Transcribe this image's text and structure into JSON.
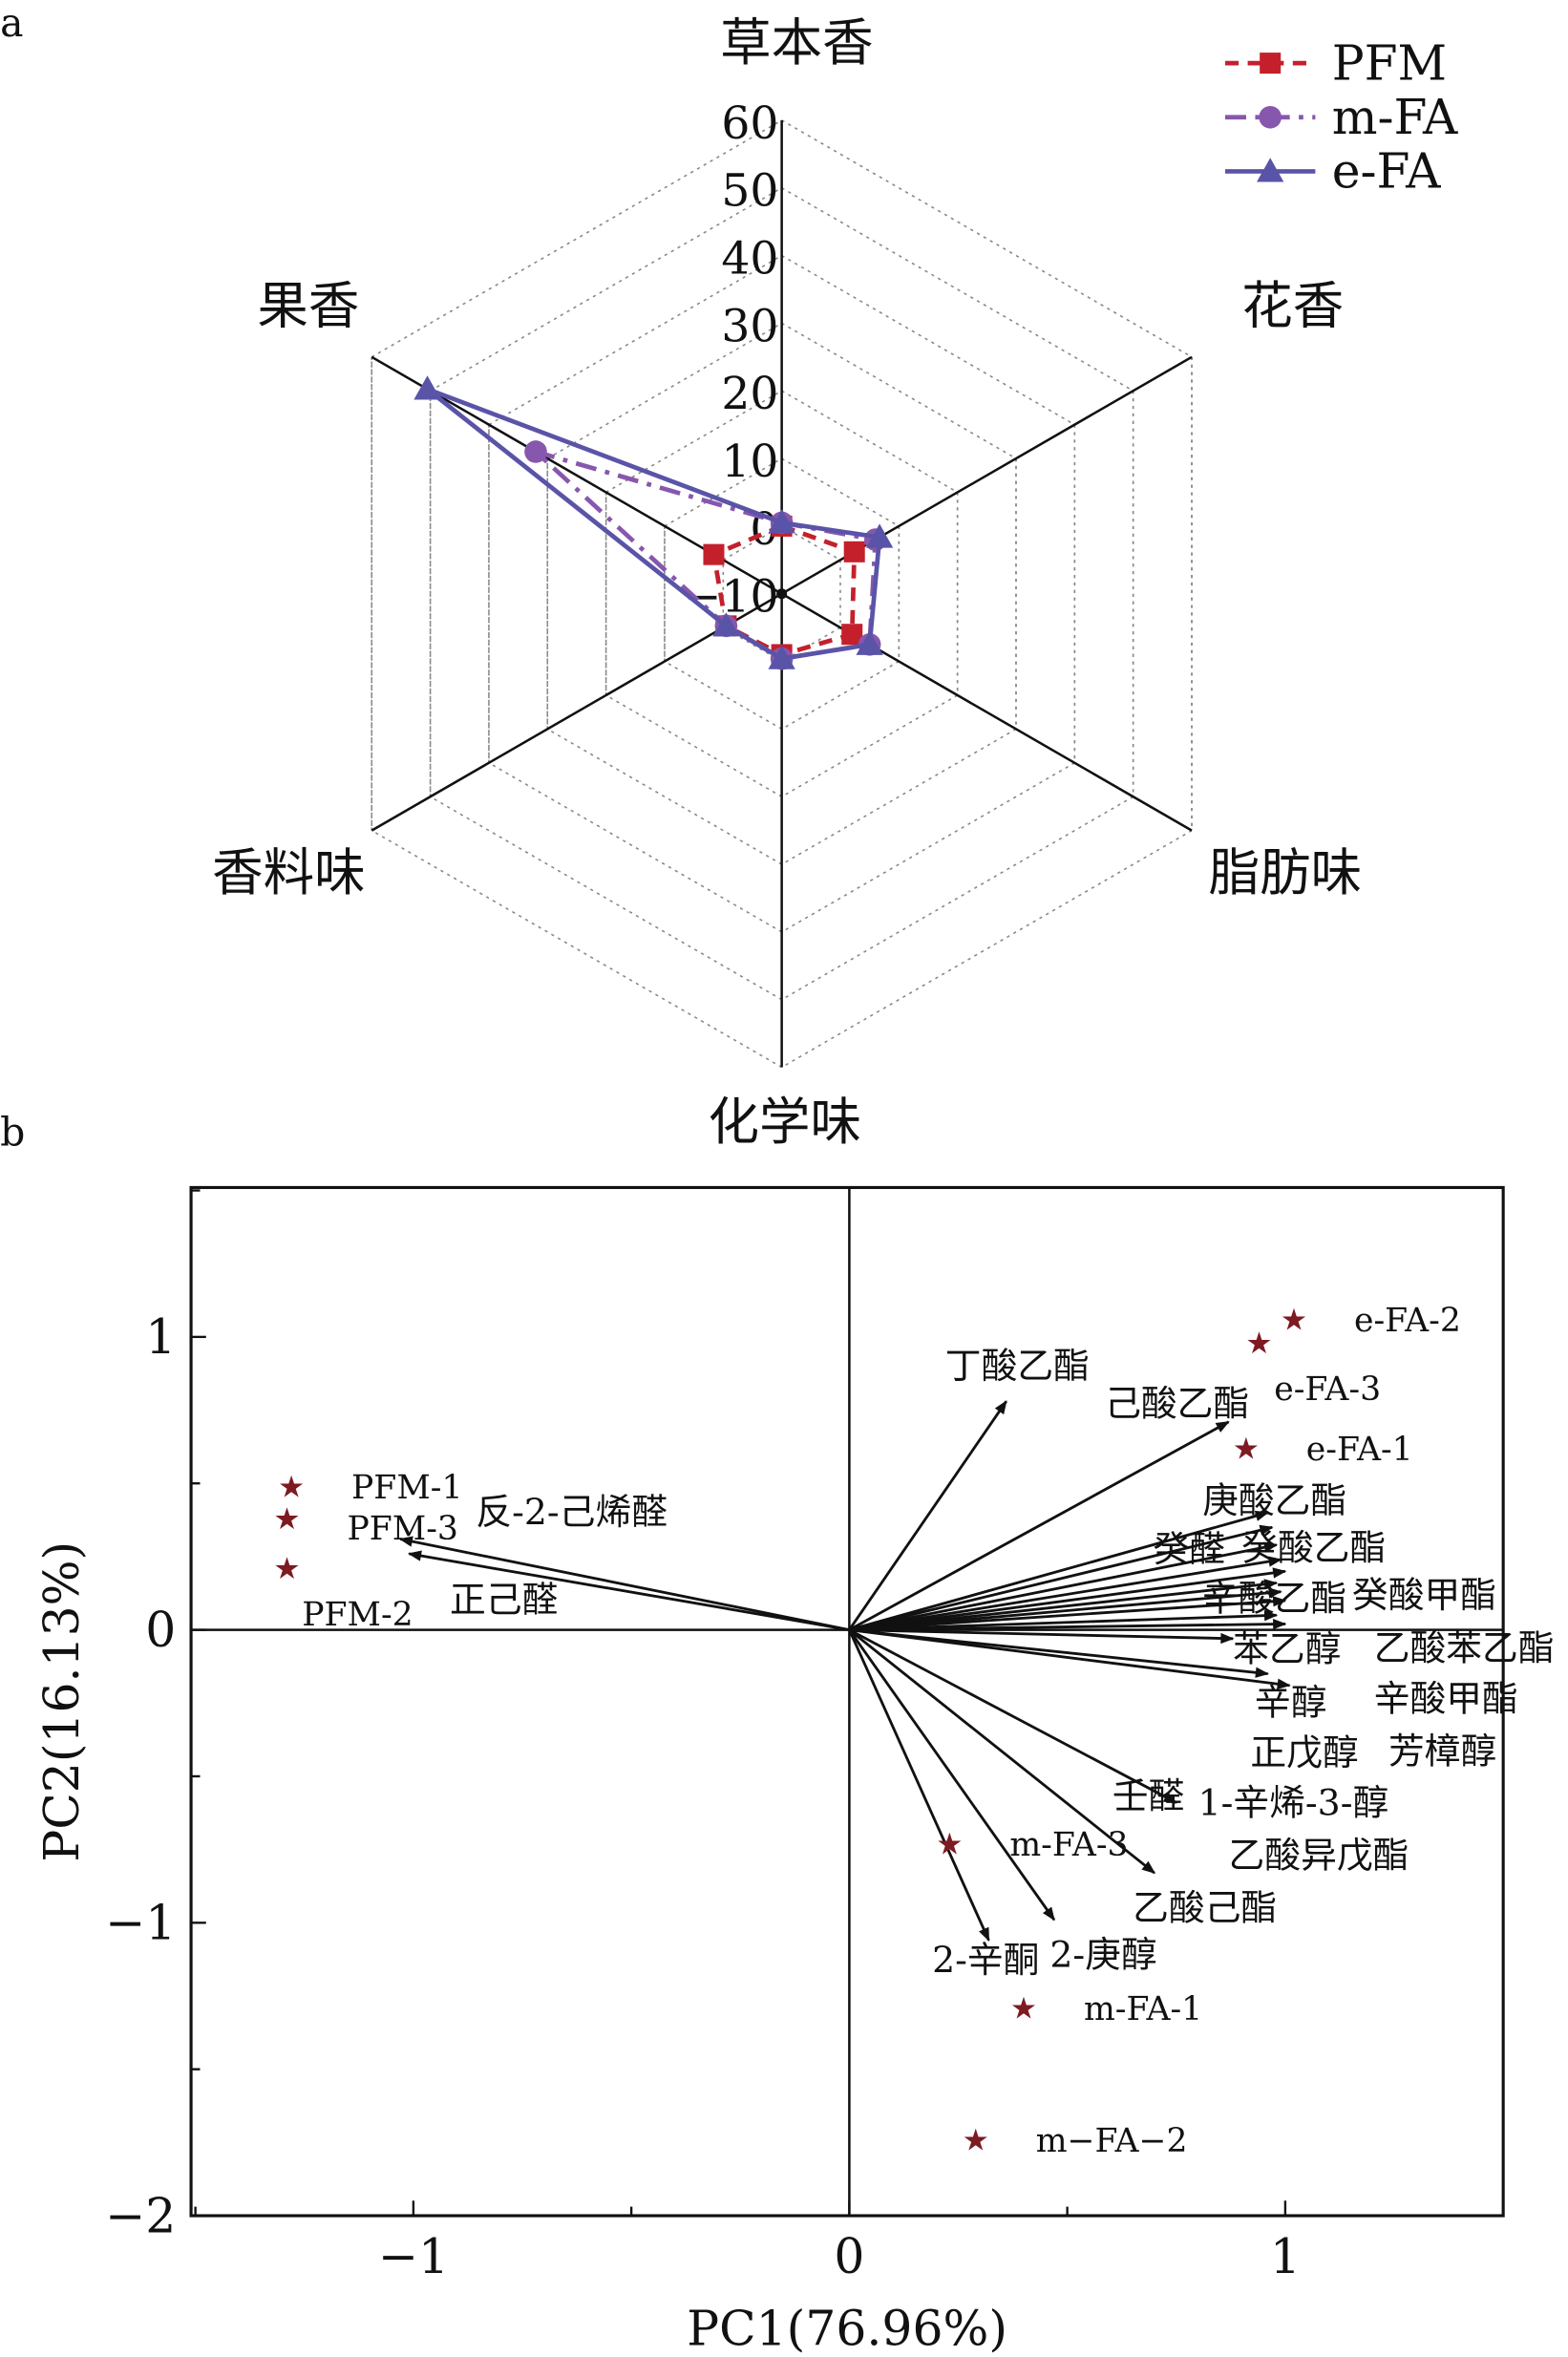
{
  "panels": {
    "a": "a",
    "b": "b"
  },
  "colors": {
    "PFM": "#c4202c",
    "m-FA": "#8757ad",
    "e-FA": "#5a54a8",
    "star": "#7d1a22"
  },
  "chart_data": [
    {
      "type": "radar",
      "title": "",
      "axes": [
        "草本香",
        "花香",
        "脂肪味",
        "化学味",
        "香料味",
        "果香"
      ],
      "rlim": [
        -10,
        60
      ],
      "rticks": [
        "60",
        "50",
        "40",
        "30",
        "20",
        "10",
        "0",
        "−10"
      ],
      "rtick_values": [
        60,
        50,
        40,
        30,
        20,
        10,
        0,
        -10
      ],
      "legend_placement": "top-right",
      "series": [
        {
          "name": "PFM",
          "style": "dashed",
          "marker": "square",
          "values": [
            0,
            2.4,
            2,
            -1,
            -0.5,
            1.6
          ]
        },
        {
          "name": "m-FA",
          "style": "dash-dot",
          "marker": "circle",
          "values": [
            0.5,
            6,
            5,
            -0.4,
            -0.5,
            32
          ]
        },
        {
          "name": "e-FA",
          "style": "solid",
          "marker": "triangle",
          "values": [
            0.5,
            6.7,
            5,
            -0.4,
            -0.5,
            50.5
          ]
        }
      ]
    },
    {
      "type": "scatter",
      "subtype": "pca-biplot",
      "xlabel": "PC1(76.96%)",
      "ylabel": "PC2(16.13%)",
      "xlim": [
        -1.51,
        1.5
      ],
      "ylim": [
        -2,
        1.51
      ],
      "xticks": [
        {
          "v": -1,
          "label": "−1"
        },
        {
          "v": 0,
          "label": "0"
        },
        {
          "v": 1,
          "label": "1"
        }
      ],
      "yticks": [
        {
          "v": 1,
          "label": "1"
        },
        {
          "v": 0,
          "label": "0"
        },
        {
          "v": -1,
          "label": "−1"
        },
        {
          "v": -2,
          "label": "−2"
        }
      ],
      "samples": [
        {
          "label": "e-FA-2",
          "x": 1.02,
          "y": 1.06
        },
        {
          "label": "e-FA-3",
          "x": 0.94,
          "y": 0.98
        },
        {
          "label": "e-FA-1",
          "x": 0.91,
          "y": 0.62
        },
        {
          "label": "PFM-1",
          "x": -1.28,
          "y": 0.49
        },
        {
          "label": "PFM-3",
          "x": -1.29,
          "y": 0.38
        },
        {
          "label": "PFM-2",
          "x": -1.29,
          "y": 0.21
        },
        {
          "label": "m-FA-3",
          "x": 0.23,
          "y": -0.73
        },
        {
          "label": "m-FA-1",
          "x": 0.4,
          "y": -1.29
        },
        {
          "label": "m−FA−2",
          "x": 0.29,
          "y": -1.74
        }
      ],
      "loadings": [
        {
          "label": "丁酸乙酯",
          "x": 0.36,
          "y": 0.78,
          "lx": 0.22,
          "ly": 0.86
        },
        {
          "label": "己酸乙酯",
          "x": 0.87,
          "y": 0.71,
          "lx": 0.69,
          "ly": 0.7
        },
        {
          "label": "反-2-己烯醛",
          "x": -1.03,
          "y": 0.31,
          "lx": -0.96,
          "ly": 0.36
        },
        {
          "label": "正己醛",
          "x": -1.01,
          "y": 0.26,
          "lx": -1.02,
          "ly": 0.06
        },
        {
          "label": "庚酸乙酯",
          "x": 0.96,
          "y": 0.4,
          "lx": 0.81,
          "ly": 0.43
        },
        {
          "label": "癸酸乙酯",
          "x": 0.97,
          "y": 0.35,
          "lx": 0.9,
          "ly": 0.33
        },
        {
          "label": "辛酸乙酯",
          "x": 0.98,
          "y": 0.29,
          "lx": 0.81,
          "ly": 0.22
        },
        {
          "label": "苯乙醇",
          "x": 0.99,
          "y": 0.24,
          "lx": 0.88,
          "ly": 0.2
        },
        {
          "label": "癸酸甲酯",
          "x": 1.0,
          "y": 0.2,
          "lx": 1.05,
          "ly": 0.2
        },
        {
          "label": "癸醛",
          "x": 0.98,
          "y": 0.16,
          "lx": 0.8,
          "ly": 0.11
        },
        {
          "label": "辛醇",
          "x": 0.99,
          "y": 0.13,
          "lx": 0.93,
          "ly": 0.08
        },
        {
          "label": "乙酸苯乙酯",
          "x": 1.0,
          "y": 0.1,
          "lx": 1.1,
          "ly": 0.08
        },
        {
          "label": "正戊醇",
          "x": 0.98,
          "y": 0.05,
          "lx": 0.92,
          "ly": -0.03
        },
        {
          "label": "辛酸甲酯",
          "x": 1.0,
          "y": 0.02,
          "lx": 1.1,
          "ly": -0.03
        },
        {
          "label": "1-辛烯-3-醇",
          "x": 0.88,
          "y": -0.03,
          "lx": 0.8,
          "ly": -0.14
        },
        {
          "label": "芳樟醇",
          "x": 1.01,
          "y": -0.19,
          "lx": 1.03,
          "ly": -0.24
        },
        {
          "label": "乙酸异戊酯",
          "x": 0.96,
          "y": -0.15,
          "lx": 0.87,
          "ly": -0.38
        },
        {
          "label": "壬醛",
          "x": 0.75,
          "y": -0.59,
          "lx": 0.81,
          "ly": -0.64
        },
        {
          "label": "乙酸己酯",
          "x": 0.7,
          "y": -0.83,
          "lx": 0.65,
          "ly": -0.96
        },
        {
          "label": "2-庚醇",
          "x": 0.47,
          "y": -0.99,
          "lx": 0.46,
          "ly": -1.12
        },
        {
          "label": "2-辛酮",
          "x": 0.32,
          "y": -1.06,
          "lx": 0.19,
          "ly": -1.2
        }
      ]
    }
  ]
}
